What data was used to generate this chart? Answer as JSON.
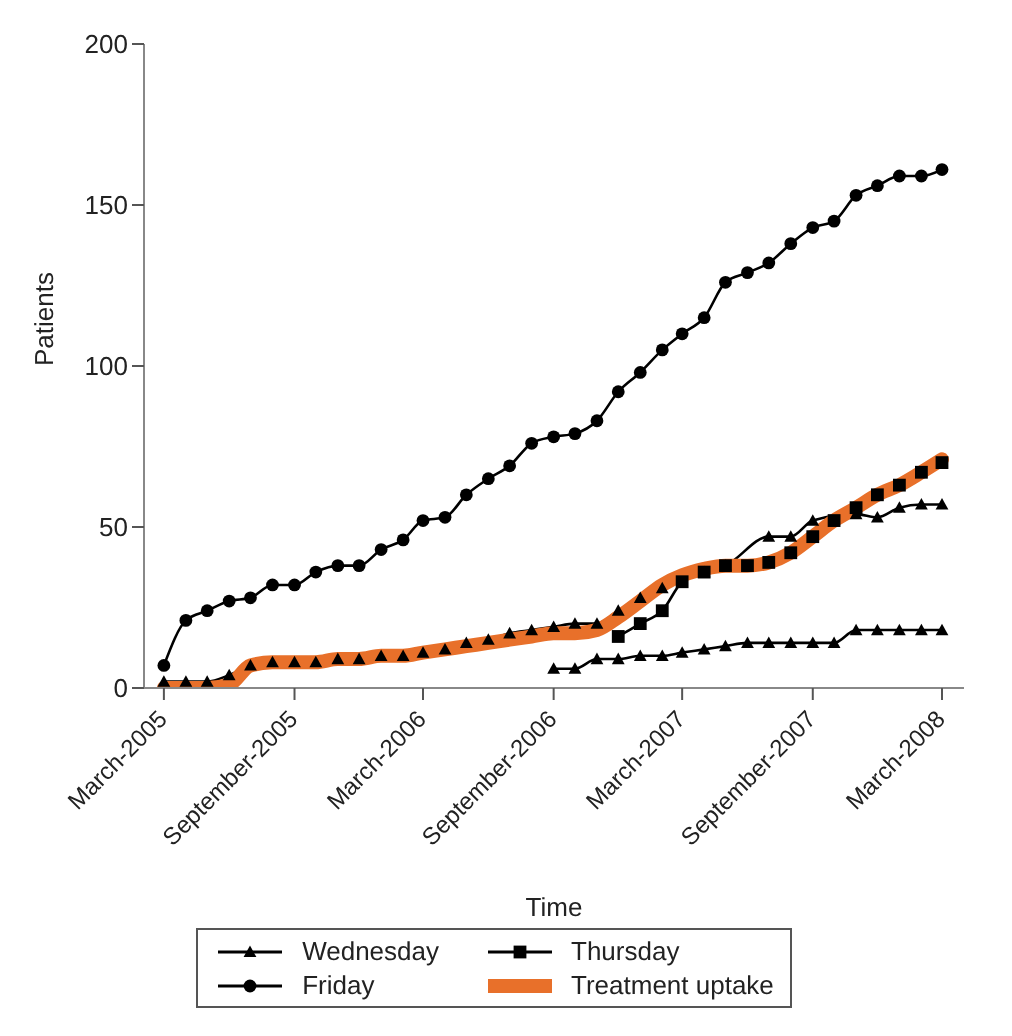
{
  "chart_data": {
    "type": "line",
    "xlabel": "Time",
    "ylabel": "Patients",
    "xlim": [
      "2005-02",
      "2008-04"
    ],
    "xticks": [
      {
        "value": "2005-03",
        "label": "March-2005"
      },
      {
        "value": "2005-09",
        "label": "September-2005"
      },
      {
        "value": "2006-03",
        "label": "March-2006"
      },
      {
        "value": "2006-09",
        "label": "September-2006"
      },
      {
        "value": "2007-03",
        "label": "March-2007"
      },
      {
        "value": "2007-09",
        "label": "September-2007"
      },
      {
        "value": "2008-03",
        "label": "March-2008"
      }
    ],
    "ylim": [
      0,
      200
    ],
    "yticks": [
      0,
      50,
      100,
      150,
      200
    ],
    "legend": "bottom",
    "series": [
      {
        "name": "Wednesday",
        "color": "#000000",
        "marker": "triangle",
        "x": [
          "2006-09",
          "2006-10",
          "2006-11",
          "2006-12",
          "2007-01",
          "2007-02",
          "2007-03",
          "2007-04",
          "2007-05",
          "2007-06",
          "2007-07",
          "2007-08",
          "2007-09",
          "2007-10",
          "2007-11",
          "2007-12",
          "2008-01",
          "2008-02",
          "2008-03"
        ],
        "values": [
          6,
          6,
          9,
          9,
          10,
          10,
          11,
          12,
          13,
          14,
          14,
          14,
          14,
          14,
          18,
          18,
          18,
          18,
          18
        ]
      },
      {
        "color": "#000000",
        "marker": "triangle",
        "x": [
          "2005-03",
          "2005-04",
          "2005-05",
          "2005-06",
          "2005-07",
          "2005-08",
          "2005-09",
          "2005-10",
          "2005-11",
          "2005-12",
          "2006-01",
          "2006-02",
          "2006-03",
          "2006-04",
          "2006-05",
          "2006-06",
          "2006-07",
          "2006-08",
          "2006-09",
          "2006-10",
          "2006-11",
          "2006-12",
          "2007-01",
          "2007-02",
          "2007-03",
          "2007-04",
          "2007-05",
          "2007-06",
          "2007-07",
          "2007-08",
          "2007-09",
          "2007-10",
          "2007-11",
          "2007-12",
          "2008-01",
          "2008-02",
          "2008-03"
        ],
        "values": [
          2,
          2,
          2,
          4,
          7,
          8,
          8,
          8,
          9,
          9,
          10,
          10,
          11,
          12,
          14,
          15,
          17,
          18,
          19,
          20,
          20,
          24,
          28,
          31,
          null,
          36,
          38,
          null,
          47,
          47,
          52,
          null,
          54,
          53,
          56,
          57,
          57
        ]
      },
      {
        "name": "Thursday",
        "color": "#000000",
        "marker": "square",
        "x": [
          "2006-12",
          "2007-01",
          "2007-02",
          "2007-03",
          "2007-04",
          "2007-05",
          "2007-06",
          "2007-07",
          "2007-08",
          "2007-09",
          "2007-10",
          "2007-11",
          "2007-12",
          "2008-01",
          "2008-02",
          "2008-03"
        ],
        "values": [
          16,
          20,
          24,
          33,
          36,
          38,
          38,
          39,
          42,
          47,
          52,
          56,
          60,
          63,
          67,
          70
        ]
      },
      {
        "name": "Friday",
        "color": "#000000",
        "marker": "circle",
        "x": [
          "2005-03",
          "2005-04",
          "2005-05",
          "2005-06",
          "2005-07",
          "2005-08",
          "2005-09",
          "2005-10",
          "2005-11",
          "2005-12",
          "2006-01",
          "2006-02",
          "2006-03",
          "2006-04",
          "2006-05",
          "2006-06",
          "2006-07",
          "2006-08",
          "2006-09",
          "2006-10",
          "2006-11",
          "2006-12",
          "2007-01",
          "2007-02",
          "2007-03",
          "2007-04",
          "2007-05",
          "2007-06",
          "2007-07",
          "2007-08",
          "2007-09",
          "2007-10",
          "2007-11",
          "2007-12",
          "2008-01",
          "2008-02",
          "2008-03"
        ],
        "values": [
          7,
          21,
          24,
          27,
          28,
          32,
          32,
          36,
          38,
          38,
          43,
          46,
          52,
          53,
          60,
          65,
          69,
          76,
          78,
          79,
          83,
          92,
          98,
          105,
          110,
          115,
          126,
          129,
          132,
          138,
          143,
          145,
          153,
          156,
          159,
          159,
          161
        ]
      },
      {
        "name": "Treatment uptake",
        "color": "#e8702a",
        "marker": "none",
        "x": [
          "2005-03",
          "2005-04",
          "2005-05",
          "2005-06",
          "2005-07",
          "2005-08",
          "2005-09",
          "2005-10",
          "2005-11",
          "2005-12",
          "2006-01",
          "2006-02",
          "2006-03",
          "2006-04",
          "2006-05",
          "2006-06",
          "2006-07",
          "2006-08",
          "2006-09",
          "2006-10",
          "2006-11",
          "2006-12",
          "2007-01",
          "2007-02",
          "2007-03",
          "2007-04",
          "2007-05",
          "2007-06",
          "2007-07",
          "2007-08",
          "2007-09",
          "2007-10",
          "2007-11",
          "2007-12",
          "2008-01",
          "2008-02",
          "2008-03"
        ],
        "values": [
          0,
          0,
          0,
          1,
          7,
          8,
          8,
          8,
          9,
          9,
          10,
          10,
          11,
          12,
          13,
          14,
          15,
          16,
          17,
          17,
          18,
          22,
          27,
          32,
          35,
          37,
          38,
          38,
          39,
          42,
          47,
          52,
          56,
          60,
          63,
          67,
          71
        ]
      }
    ]
  }
}
